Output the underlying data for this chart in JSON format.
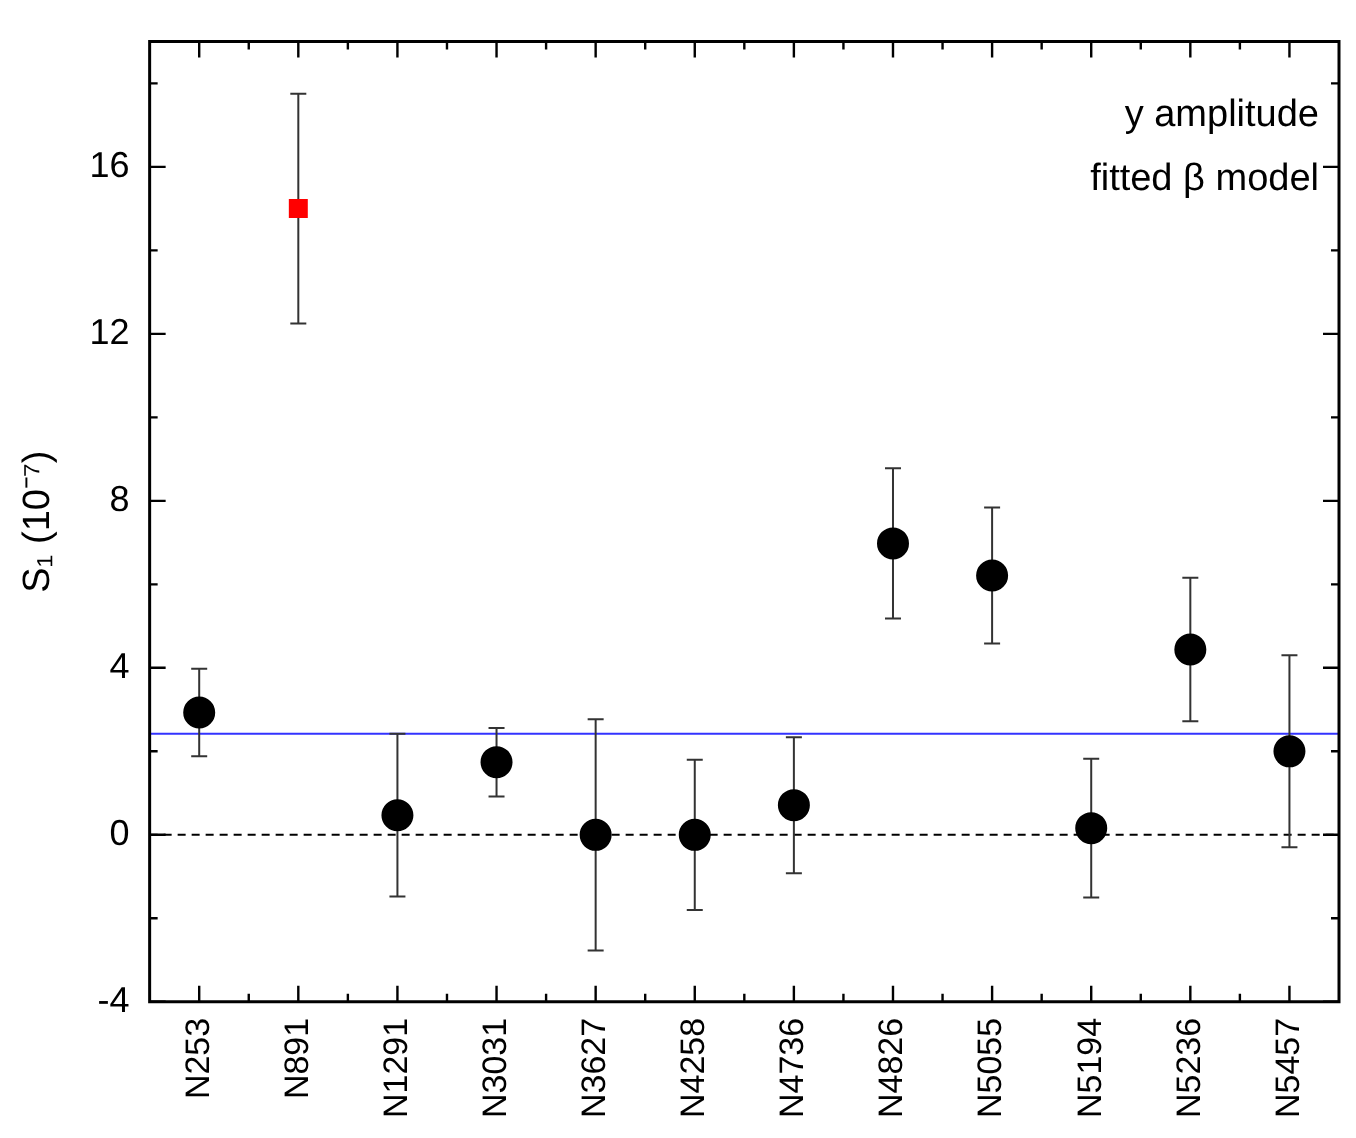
{
  "chart_data": {
    "type": "scatter",
    "ylabel": "S₁ (10⁻⁷)",
    "categories": [
      "N253",
      "N891",
      "N1291",
      "N3031",
      "N3627",
      "N4258",
      "N4736",
      "N4826",
      "N5055",
      "N5194",
      "N5236",
      "N5457"
    ],
    "series": [
      {
        "color": "#000000",
        "marker": "circle",
        "values": [
          2.93,
          null,
          0.47,
          1.74,
          0,
          0,
          0.71,
          6.98,
          6.21,
          0.16,
          4.44,
          2.0
        ],
        "errors": [
          1.05,
          null,
          1.95,
          0.82,
          2.77,
          1.8,
          1.63,
          1.8,
          1.63,
          1.66,
          1.72,
          2.3
        ]
      },
      {
        "color": "#ff0000",
        "marker": "square",
        "values": [
          null,
          15.0,
          null,
          null,
          null,
          null,
          null,
          null,
          null,
          null,
          null,
          null
        ],
        "errors": [
          null,
          2.75,
          null,
          null,
          null,
          null,
          null,
          null,
          null,
          null,
          null,
          null
        ]
      }
    ],
    "ylim": [
      -4,
      19
    ],
    "yticks": [
      {
        "value": -4,
        "label": "-4"
      },
      {
        "value": -2,
        "label": null
      },
      {
        "value": 0,
        "label": "0"
      },
      {
        "value": 2,
        "label": null
      },
      {
        "value": 4,
        "label": "4"
      },
      {
        "value": 6,
        "label": null
      },
      {
        "value": 8,
        "label": "8"
      },
      {
        "value": 10,
        "label": null
      },
      {
        "value": 12,
        "label": "12"
      },
      {
        "value": 14,
        "label": null
      },
      {
        "value": 16,
        "label": "16"
      },
      {
        "value": 18,
        "label": null
      }
    ],
    "ref_lines": [
      {
        "axis": "y",
        "value": 2.42,
        "color": "#3333ff",
        "line_style": "solid"
      },
      {
        "axis": "y",
        "value": 0,
        "color": "#000000",
        "line_style": "dashed"
      }
    ],
    "annotations": [
      "y amplitude",
      "fitted β model"
    ],
    "grid": false,
    "legend": false
  }
}
